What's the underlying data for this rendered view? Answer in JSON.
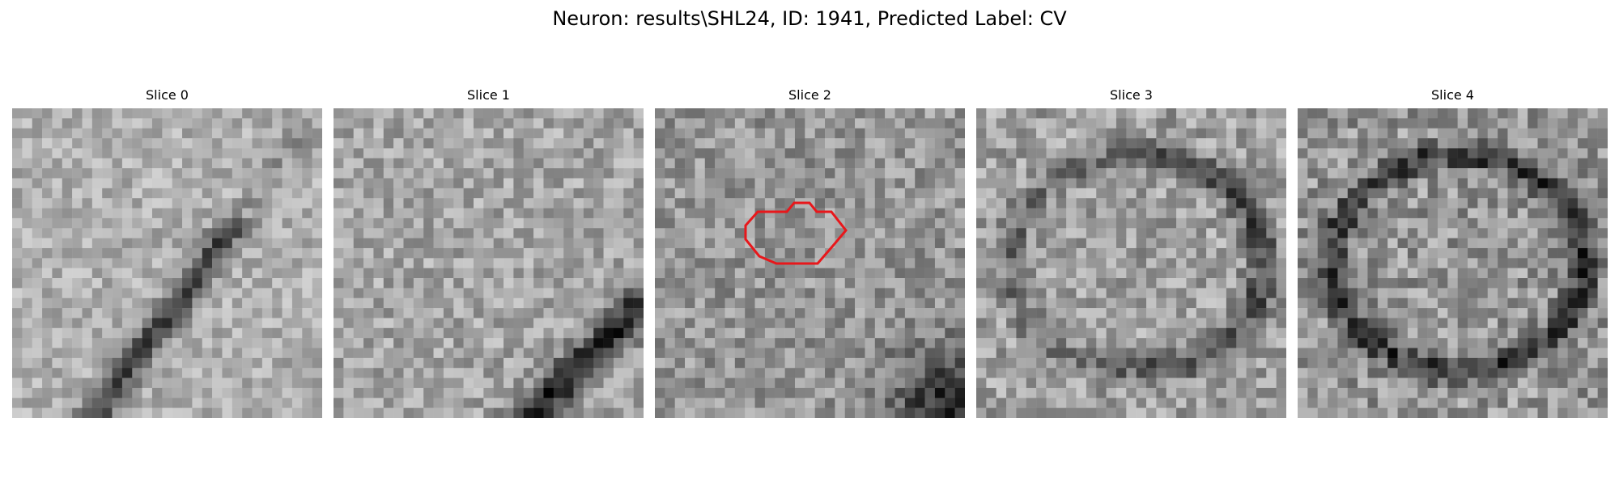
{
  "figure": {
    "title": "Neuron: results\\SHL24, ID: 1941, Predicted Label: CV"
  },
  "slices": [
    {
      "title": "Slice 0",
      "seed": 11,
      "darkBand": "diag",
      "base": 175,
      "spread": 70,
      "darkness": 120
    },
    {
      "title": "Slice 1",
      "seed": 23,
      "darkBand": "diag-low",
      "base": 165,
      "spread": 80,
      "darkness": 130
    },
    {
      "title": "Slice 2",
      "seed": 37,
      "darkBand": "corner",
      "base": 150,
      "spread": 85,
      "darkness": 120
    },
    {
      "title": "Slice 3",
      "seed": 41,
      "darkBand": "ring",
      "base": 160,
      "spread": 90,
      "darkness": 90
    },
    {
      "title": "Slice 4",
      "seed": 53,
      "darkBand": "ring-strong",
      "base": 150,
      "spread": 100,
      "darkness": 110
    }
  ],
  "overlay": {
    "color": "#e8171b",
    "slice": 2
  },
  "image_grid": 31
}
